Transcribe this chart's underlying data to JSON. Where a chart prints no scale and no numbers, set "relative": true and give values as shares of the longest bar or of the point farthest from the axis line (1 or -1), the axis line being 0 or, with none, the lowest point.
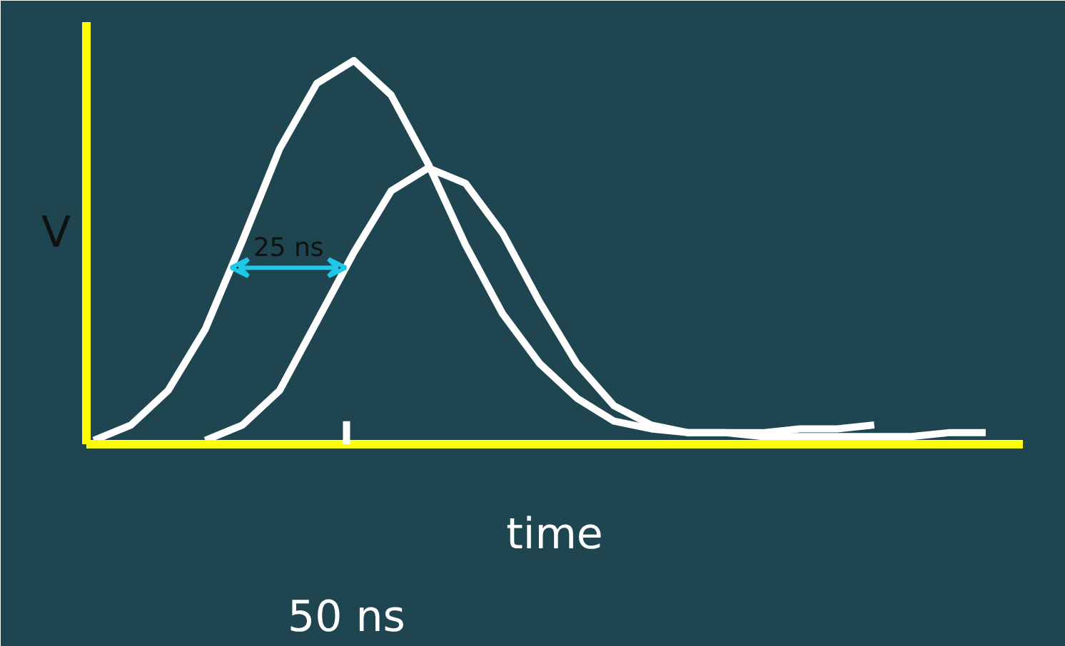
{
  "chart_data": {
    "type": "line",
    "relative": true,
    "xlabel": "time",
    "ylabel": "V",
    "grid": false,
    "marker": "none",
    "line_style": "solid",
    "categories": [
      null,
      null,
      null,
      null,
      null,
      null,
      null,
      null,
      null,
      null,
      null,
      null,
      null,
      null,
      null,
      null,
      null,
      null,
      null,
      null,
      null,
      null,
      null,
      null,
      null
    ],
    "series": [
      {
        "color": "#ffffff",
        "values": [
          0.01,
          0.05,
          0.14,
          0.3,
          0.53,
          0.77,
          0.94,
          1,
          0.91,
          0.73,
          0.52,
          0.34,
          0.21,
          0.12,
          0.06,
          0.04,
          0.03,
          0.03,
          0.03,
          0.04,
          0.04,
          0.05,
          null,
          null,
          null
        ]
      },
      {
        "color": "#ffffff",
        "values": [
          null,
          null,
          null,
          0.01,
          0.05,
          0.14,
          0.32,
          0.5,
          0.66,
          0.72,
          0.68,
          0.55,
          0.37,
          0.21,
          0.1,
          0.05,
          0.03,
          0.03,
          0.02,
          0.02,
          0.02,
          0.02,
          0.02,
          0.03,
          0.03
        ]
      }
    ],
    "annotations": [
      "25 ns",
      "50 ns"
    ]
  }
}
